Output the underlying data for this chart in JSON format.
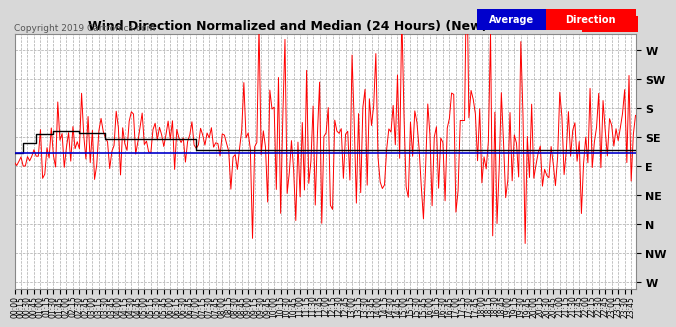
{
  "title": "Wind Direction Normalized and Median (24 Hours) (New) 20190825",
  "copyright": "Copyright 2019 Cartronics.com",
  "legend_label_avg": "Average",
  "legend_label_dir": "Direction",
  "background_color": "#d8d8d8",
  "plot_bg_color": "#ffffff",
  "grid_color": "#aaaaaa",
  "red_line_color": "#ff0000",
  "blue_line_color": "#0000cc",
  "black_line_color": "#000000",
  "ytick_labels": [
    "W",
    "SW",
    "S",
    "SE",
    "E",
    "NE",
    "N",
    "NW",
    "W"
  ],
  "ytick_values": [
    360,
    315,
    270,
    225,
    180,
    135,
    90,
    45,
    0
  ],
  "ylim": [
    -10,
    385
  ],
  "avg_direction_value": 200,
  "seed": 42,
  "n_points": 288
}
